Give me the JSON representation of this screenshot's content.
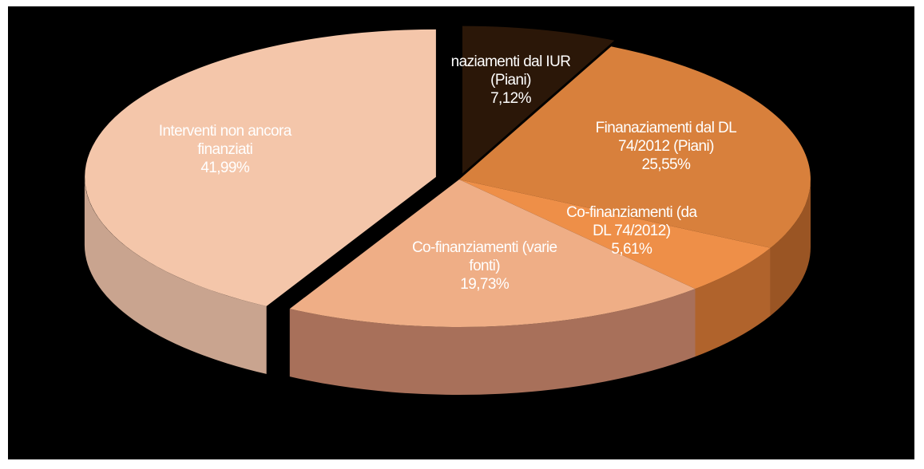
{
  "chart_data": {
    "type": "pie",
    "categories": [
      "naziamenti dal IUR (Piani)",
      "Finanaziamenti dal DL 74/2012 (Piani)",
      "Co-finanziamenti (da DL 74/2012)",
      "Co-finanziamenti (varie fonti)",
      "Interventi non ancora finanziati"
    ],
    "values": [
      7.12,
      25.55,
      5.61,
      19.73,
      41.99
    ],
    "value_labels": [
      "7,12%",
      "25,55%",
      "5,61%",
      "19,73%",
      "41,99%"
    ],
    "colors": [
      "#2b1708",
      "#d8803c",
      "#ee8f48",
      "#efae86",
      "#f4c6aa"
    ],
    "side_colors": [
      "#1a0d04",
      "#9a5524",
      "#b0632c",
      "#a8705a",
      "#c9a48f"
    ]
  }
}
